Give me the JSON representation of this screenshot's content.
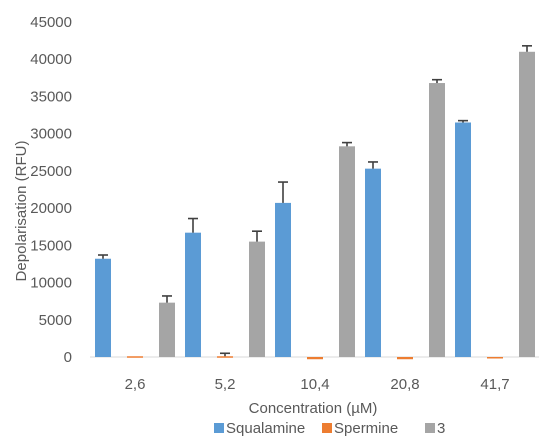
{
  "chart_data": {
    "type": "bar",
    "xlabel": "Concentration (µM)",
    "ylabel": "Depolarisation (RFU)",
    "categories": [
      "2,6",
      "5,2",
      "10,4",
      "20,8",
      "41,7"
    ],
    "ylim": [
      0,
      45000
    ],
    "yticks": [
      0,
      5000,
      10000,
      15000,
      20000,
      25000,
      30000,
      35000,
      40000,
      45000
    ],
    "grid": false,
    "legend_position": "bottom",
    "series": [
      {
        "name": "Squalamine",
        "color": "#5B9BD5",
        "values": [
          13200,
          16700,
          20700,
          25300,
          31500
        ],
        "errors": [
          500,
          1900,
          2800,
          900,
          250
        ]
      },
      {
        "name": "Spermine",
        "color": "#ED7D31",
        "values": [
          100,
          100,
          -300,
          -300,
          -200
        ],
        "errors": [
          0,
          400,
          0,
          0,
          0
        ]
      },
      {
        "name": "3",
        "color": "#A5A5A5",
        "values": [
          7300,
          15500,
          28300,
          36800,
          41000
        ],
        "errors": [
          900,
          1400,
          500,
          450,
          800
        ]
      }
    ]
  }
}
